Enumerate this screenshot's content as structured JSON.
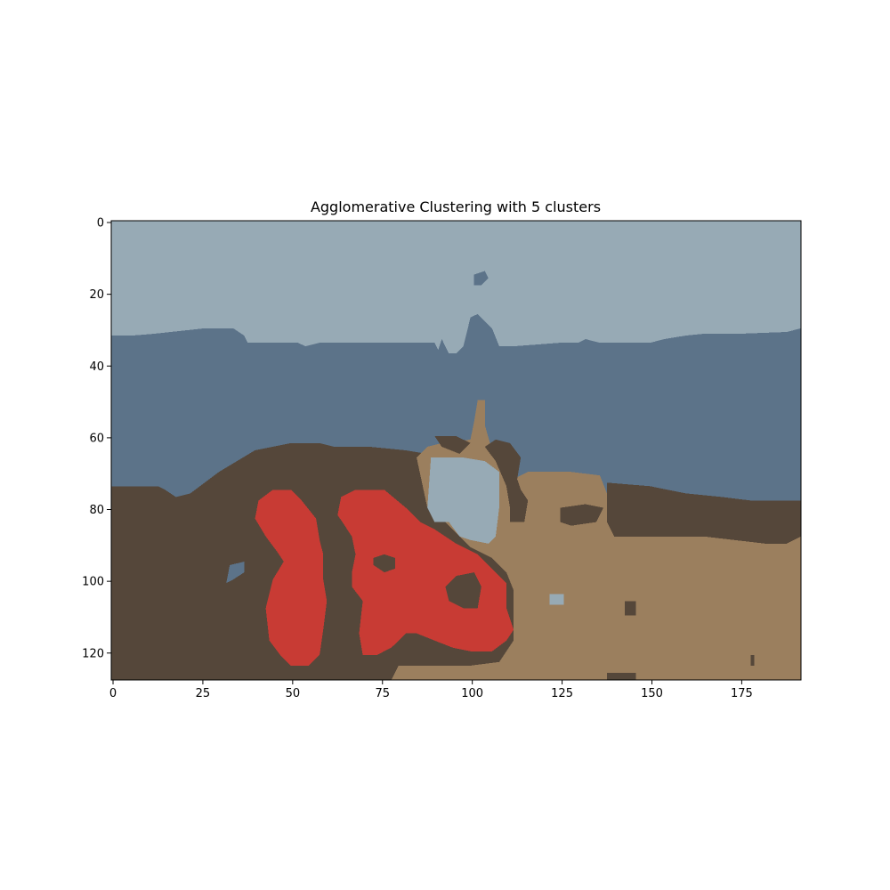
{
  "chart_data": {
    "type": "heatmap",
    "title": "Agglomerative Clustering with 5 clusters",
    "xlabel": "",
    "ylabel": "",
    "xlim": [
      -0.5,
      191.5
    ],
    "ylim": [
      127.5,
      -0.5
    ],
    "image_width": 192,
    "image_height": 128,
    "x_ticks": [
      0,
      25,
      50,
      75,
      100,
      125,
      150,
      175
    ],
    "y_ticks": [
      0,
      20,
      40,
      60,
      80,
      100,
      120
    ],
    "grid": false,
    "colors": {
      "sky": "#97aab5",
      "water": "#5c7389",
      "dark_earth": "#55473a",
      "light_earth": "#9b7f5e",
      "red": "#c83b34"
    },
    "regions": [
      {
        "cluster": "sky",
        "points": [
          [
            0,
            0
          ],
          [
            192,
            0
          ],
          [
            192,
            128
          ],
          [
            0,
            128
          ]
        ]
      },
      {
        "cluster": "water",
        "points": [
          [
            0,
            32
          ],
          [
            6,
            32
          ],
          [
            12,
            31.5
          ],
          [
            26,
            30
          ],
          [
            34,
            30
          ],
          [
            37,
            32
          ],
          [
            38,
            34
          ],
          [
            52,
            34
          ],
          [
            54,
            35
          ],
          [
            58,
            34
          ],
          [
            90,
            34
          ],
          [
            91,
            36
          ],
          [
            92,
            33
          ],
          [
            94,
            37
          ],
          [
            96,
            37
          ],
          [
            98,
            35
          ],
          [
            99,
            31
          ],
          [
            100,
            27
          ],
          [
            102,
            26
          ],
          [
            106,
            30
          ],
          [
            108,
            35
          ],
          [
            112,
            35
          ],
          [
            125,
            34
          ],
          [
            130,
            34
          ],
          [
            132,
            33
          ],
          [
            136,
            34
          ],
          [
            150,
            34
          ],
          [
            154,
            33
          ],
          [
            160,
            32
          ],
          [
            165,
            31.5
          ],
          [
            175,
            31.5
          ],
          [
            188,
            31
          ],
          [
            192,
            30
          ],
          [
            192,
            128
          ],
          [
            0,
            128
          ]
        ]
      },
      {
        "cluster": "water",
        "points": [
          [
            101,
            15
          ],
          [
            104,
            14
          ],
          [
            105,
            16
          ],
          [
            103,
            18
          ],
          [
            101,
            18
          ]
        ]
      },
      {
        "cluster": "dark_earth",
        "points": [
          [
            0,
            74
          ],
          [
            13,
            74
          ],
          [
            15,
            75
          ],
          [
            18,
            77
          ],
          [
            22,
            76
          ],
          [
            26,
            73
          ],
          [
            30,
            70
          ],
          [
            35,
            67
          ],
          [
            40,
            64
          ],
          [
            50,
            62
          ],
          [
            58,
            62
          ],
          [
            62,
            63
          ],
          [
            72,
            63
          ],
          [
            82,
            64
          ],
          [
            88,
            65
          ],
          [
            88,
            80
          ],
          [
            92,
            83
          ],
          [
            96,
            87
          ],
          [
            100,
            91
          ],
          [
            106,
            94
          ],
          [
            108,
            96
          ],
          [
            110,
            98
          ],
          [
            112,
            103
          ],
          [
            112,
            117
          ],
          [
            108,
            123
          ],
          [
            100,
            124
          ],
          [
            96,
            124
          ],
          [
            90,
            124
          ],
          [
            80,
            124
          ],
          [
            78,
            128
          ],
          [
            0,
            128
          ]
        ]
      },
      {
        "cluster": "light_earth",
        "points": [
          [
            85,
            66
          ],
          [
            88,
            63
          ],
          [
            92,
            62
          ],
          [
            100,
            61
          ],
          [
            101,
            56
          ],
          [
            102,
            50
          ],
          [
            104,
            50
          ],
          [
            104,
            57
          ],
          [
            106,
            64
          ],
          [
            110,
            70
          ],
          [
            112,
            72
          ],
          [
            116,
            70
          ],
          [
            118,
            70
          ],
          [
            128,
            70
          ],
          [
            136,
            71
          ],
          [
            138,
            76
          ],
          [
            138,
            84
          ],
          [
            140,
            88
          ],
          [
            150,
            88
          ],
          [
            165,
            88
          ],
          [
            182,
            90
          ],
          [
            188,
            90
          ],
          [
            192,
            88
          ],
          [
            192,
            128
          ],
          [
            78,
            128
          ],
          [
            80,
            124
          ],
          [
            90,
            124
          ],
          [
            96,
            124
          ],
          [
            100,
            124
          ],
          [
            108,
            123
          ],
          [
            112,
            117
          ],
          [
            112,
            103
          ],
          [
            110,
            98
          ],
          [
            108,
            96
          ],
          [
            106,
            94
          ],
          [
            100,
            91
          ],
          [
            96,
            87
          ],
          [
            92,
            83
          ],
          [
            88,
            80
          ]
        ]
      },
      {
        "cluster": "dark_earth",
        "points": [
          [
            138,
            73
          ],
          [
            150,
            74
          ],
          [
            160,
            76
          ],
          [
            170,
            77
          ],
          [
            178,
            78
          ],
          [
            192,
            78
          ],
          [
            192,
            88
          ],
          [
            188,
            90
          ],
          [
            182,
            90
          ],
          [
            165,
            88
          ],
          [
            150,
            88
          ],
          [
            140,
            88
          ],
          [
            138,
            84
          ]
        ]
      },
      {
        "cluster": "dark_earth",
        "points": [
          [
            113,
            72
          ],
          [
            114,
            66
          ],
          [
            111,
            62
          ],
          [
            107,
            61
          ],
          [
            104,
            63
          ],
          [
            107,
            67
          ],
          [
            110,
            74
          ],
          [
            111,
            80
          ],
          [
            111,
            84
          ],
          [
            115,
            84
          ],
          [
            116,
            78
          ],
          [
            114,
            75
          ]
        ]
      },
      {
        "cluster": "dark_earth",
        "points": [
          [
            90,
            60
          ],
          [
            96,
            60
          ],
          [
            100,
            62
          ],
          [
            97,
            65
          ],
          [
            92,
            63
          ]
        ]
      },
      {
        "cluster": "dark_earth",
        "points": [
          [
            125,
            80
          ],
          [
            132,
            79
          ],
          [
            137,
            80
          ],
          [
            135,
            84
          ],
          [
            128,
            85
          ],
          [
            125,
            84
          ]
        ]
      },
      {
        "cluster": "dark_earth",
        "points": [
          [
            143,
            106
          ],
          [
            146,
            106
          ],
          [
            146,
            110
          ],
          [
            143,
            110
          ]
        ]
      },
      {
        "cluster": "dark_earth",
        "points": [
          [
            138,
            126
          ],
          [
            146,
            126
          ],
          [
            146,
            128
          ],
          [
            138,
            128
          ]
        ]
      },
      {
        "cluster": "dark_earth",
        "points": [
          [
            178,
            121
          ],
          [
            179,
            121
          ],
          [
            179,
            124
          ],
          [
            178,
            124
          ]
        ]
      },
      {
        "cluster": "sky",
        "points": [
          [
            89,
            66
          ],
          [
            98,
            66
          ],
          [
            104,
            67
          ],
          [
            108,
            70
          ],
          [
            108,
            80
          ],
          [
            107,
            88
          ],
          [
            105,
            90
          ],
          [
            100,
            89
          ],
          [
            97,
            88
          ],
          [
            94,
            84
          ],
          [
            90,
            84
          ],
          [
            88,
            80
          ]
        ]
      },
      {
        "cluster": "sky",
        "points": [
          [
            122,
            104
          ],
          [
            126,
            104
          ],
          [
            126,
            107
          ],
          [
            122,
            107
          ]
        ]
      },
      {
        "cluster": "water",
        "points": [
          [
            33,
            96
          ],
          [
            37,
            95
          ],
          [
            37,
            98
          ],
          [
            34,
            100
          ],
          [
            32,
            101
          ]
        ]
      },
      {
        "cluster": "red",
        "points": [
          [
            45,
            75
          ],
          [
            50,
            75
          ],
          [
            53,
            78
          ],
          [
            57,
            83
          ],
          [
            58,
            89
          ],
          [
            59,
            93
          ],
          [
            59,
            100
          ],
          [
            60,
            106
          ],
          [
            59,
            114
          ],
          [
            58,
            121
          ],
          [
            55,
            124
          ],
          [
            50,
            124
          ],
          [
            47,
            121
          ],
          [
            44,
            117
          ],
          [
            43,
            108
          ],
          [
            45,
            100
          ],
          [
            48,
            95
          ],
          [
            46,
            92
          ],
          [
            43,
            88
          ],
          [
            40,
            83
          ],
          [
            41,
            78
          ]
        ]
      },
      {
        "cluster": "red",
        "points": [
          [
            64,
            77
          ],
          [
            68,
            75
          ],
          [
            76,
            75
          ],
          [
            82,
            80
          ],
          [
            86,
            84
          ],
          [
            90,
            86
          ],
          [
            96,
            90
          ],
          [
            102,
            93
          ],
          [
            106,
            97
          ],
          [
            110,
            101
          ],
          [
            110,
            108
          ],
          [
            112,
            114
          ],
          [
            110,
            117
          ],
          [
            106,
            120
          ],
          [
            100,
            120
          ],
          [
            95,
            119
          ],
          [
            90,
            117
          ],
          [
            85,
            115
          ],
          [
            82,
            115
          ],
          [
            78,
            119
          ],
          [
            74,
            121
          ],
          [
            70,
            121
          ],
          [
            69,
            115
          ],
          [
            70,
            106
          ],
          [
            67,
            102
          ],
          [
            67,
            98
          ],
          [
            68,
            93
          ],
          [
            67,
            88
          ],
          [
            65,
            85
          ],
          [
            63,
            82
          ]
        ]
      },
      {
        "cluster": "dark_earth",
        "points": [
          [
            93,
            102
          ],
          [
            96,
            99
          ],
          [
            101,
            98
          ],
          [
            103,
            102
          ],
          [
            102,
            108
          ],
          [
            98,
            108
          ],
          [
            94,
            106
          ]
        ]
      },
      {
        "cluster": "dark_earth",
        "points": [
          [
            73,
            94
          ],
          [
            76,
            93
          ],
          [
            79,
            94
          ],
          [
            79,
            97
          ],
          [
            76,
            98
          ],
          [
            73,
            96
          ]
        ]
      }
    ]
  }
}
